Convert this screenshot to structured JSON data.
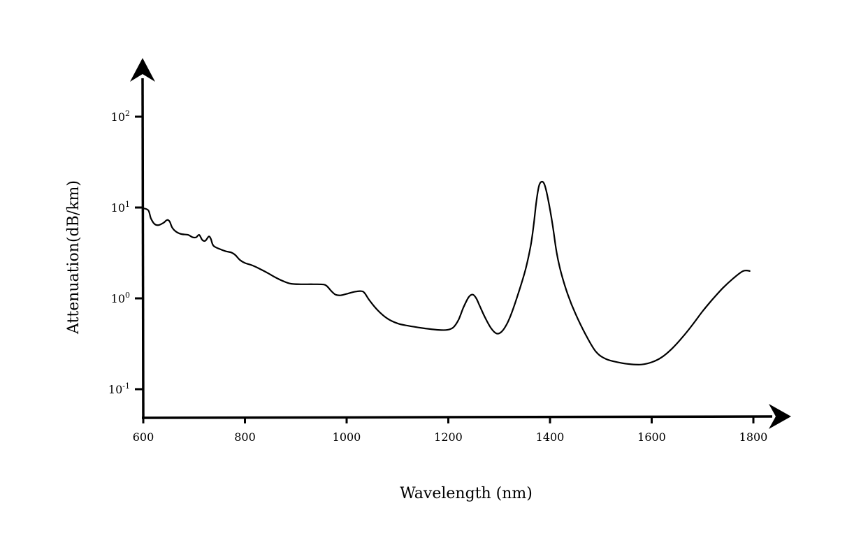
{
  "chart_data": {
    "type": "line",
    "title": "",
    "xlabel": "Wavelength (nm)",
    "ylabel": "Attenuation(dB/km)",
    "xlim": [
      600,
      1800
    ],
    "ylim": [
      0.05,
      300
    ],
    "yscale": "log",
    "grid": false,
    "x_ticks": [
      {
        "value": 600,
        "label": "600"
      },
      {
        "value": 800,
        "label": "800"
      },
      {
        "value": 1000,
        "label": "1000"
      },
      {
        "value": 1200,
        "label": "1200"
      },
      {
        "value": 1400,
        "label": "1400"
      },
      {
        "value": 1600,
        "label": "1600"
      },
      {
        "value": 1800,
        "label": "1800"
      }
    ],
    "y_ticks": [
      {
        "value": 0.1,
        "base": "10",
        "exp": "-1"
      },
      {
        "value": 1,
        "base": "10",
        "exp": "0"
      },
      {
        "value": 10,
        "base": "10",
        "exp": "1"
      },
      {
        "value": 100,
        "base": "10",
        "exp": "2"
      }
    ],
    "series": [
      {
        "points": [
          [
            600,
            9.8
          ],
          [
            610,
            9.3
          ],
          [
            615,
            7.6
          ],
          [
            622,
            6.6
          ],
          [
            630,
            6.4
          ],
          [
            640,
            6.8
          ],
          [
            647,
            7.3
          ],
          [
            652,
            7.0
          ],
          [
            657,
            6.0
          ],
          [
            665,
            5.4
          ],
          [
            675,
            5.1
          ],
          [
            688,
            5.0
          ],
          [
            697,
            4.7
          ],
          [
            704,
            4.7
          ],
          [
            710,
            5.0
          ],
          [
            716,
            4.4
          ],
          [
            722,
            4.3
          ],
          [
            729,
            4.8
          ],
          [
            733,
            4.5
          ],
          [
            738,
            3.8
          ],
          [
            750,
            3.5
          ],
          [
            762,
            3.3
          ],
          [
            773,
            3.2
          ],
          [
            781,
            3.0
          ],
          [
            790,
            2.65
          ],
          [
            800,
            2.45
          ],
          [
            815,
            2.3
          ],
          [
            830,
            2.1
          ],
          [
            845,
            1.9
          ],
          [
            860,
            1.7
          ],
          [
            875,
            1.55
          ],
          [
            890,
            1.45
          ],
          [
            910,
            1.43
          ],
          [
            935,
            1.43
          ],
          [
            955,
            1.42
          ],
          [
            962,
            1.35
          ],
          [
            970,
            1.2
          ],
          [
            978,
            1.1
          ],
          [
            988,
            1.08
          ],
          [
            1000,
            1.12
          ],
          [
            1015,
            1.18
          ],
          [
            1028,
            1.2
          ],
          [
            1035,
            1.15
          ],
          [
            1045,
            0.95
          ],
          [
            1060,
            0.75
          ],
          [
            1080,
            0.6
          ],
          [
            1100,
            0.53
          ],
          [
            1120,
            0.5
          ],
          [
            1150,
            0.47
          ],
          [
            1180,
            0.45
          ],
          [
            1198,
            0.45
          ],
          [
            1210,
            0.48
          ],
          [
            1220,
            0.58
          ],
          [
            1230,
            0.8
          ],
          [
            1240,
            1.03
          ],
          [
            1248,
            1.1
          ],
          [
            1255,
            1.0
          ],
          [
            1262,
            0.82
          ],
          [
            1272,
            0.62
          ],
          [
            1284,
            0.47
          ],
          [
            1295,
            0.41
          ],
          [
            1305,
            0.43
          ],
          [
            1315,
            0.52
          ],
          [
            1325,
            0.7
          ],
          [
            1338,
            1.15
          ],
          [
            1352,
            2.1
          ],
          [
            1362,
            3.8
          ],
          [
            1368,
            6.5
          ],
          [
            1373,
            11.5
          ],
          [
            1378,
            17.0
          ],
          [
            1383,
            19.2
          ],
          [
            1389,
            18.0
          ],
          [
            1396,
            12.5
          ],
          [
            1405,
            6.5
          ],
          [
            1413,
            3.2
          ],
          [
            1422,
            1.9
          ],
          [
            1435,
            1.1
          ],
          [
            1450,
            0.68
          ],
          [
            1470,
            0.4
          ],
          [
            1490,
            0.26
          ],
          [
            1510,
            0.215
          ],
          [
            1535,
            0.197
          ],
          [
            1560,
            0.188
          ],
          [
            1580,
            0.187
          ],
          [
            1600,
            0.198
          ],
          [
            1620,
            0.225
          ],
          [
            1640,
            0.28
          ],
          [
            1660,
            0.37
          ],
          [
            1680,
            0.51
          ],
          [
            1700,
            0.72
          ],
          [
            1720,
            0.98
          ],
          [
            1740,
            1.3
          ],
          [
            1760,
            1.65
          ],
          [
            1780,
            2.0
          ],
          [
            1794,
            2.0
          ]
        ]
      }
    ]
  }
}
